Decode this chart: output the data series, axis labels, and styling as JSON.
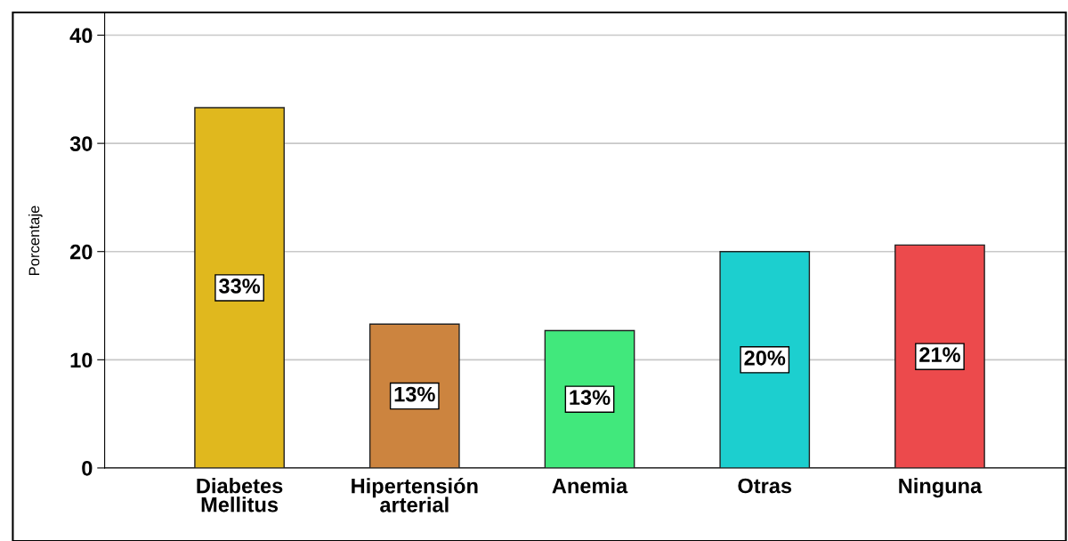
{
  "chart_data": {
    "type": "bar",
    "ylabel": "Porcentaje",
    "categories": [
      "Diabetes\nMellitus",
      "Hipertensión\narterial",
      "Anemia",
      "Otras",
      "Ninguna"
    ],
    "values": [
      33.3,
      13.3,
      12.7,
      20.0,
      20.6
    ],
    "colors": [
      "#e0b81e",
      "#cc843f",
      "#41e87c",
      "#1ccfcf",
      "#ec4a4c"
    ],
    "value_labels": [
      "33%",
      "13%",
      "13%",
      "20%",
      "21%"
    ],
    "ylim": [
      0,
      42
    ],
    "yticks": [
      0,
      10,
      20,
      30,
      40
    ],
    "grid": "y",
    "legend": false
  }
}
